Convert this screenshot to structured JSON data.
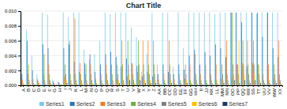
{
  "chart_data": {
    "type": "bar",
    "title": "Chart Title",
    "categories": [
      "A",
      "B",
      "C",
      "D",
      "E",
      "F",
      "G",
      "H",
      "I",
      "J",
      "K",
      "L",
      "M",
      "N",
      "O",
      "P",
      "Q",
      "R",
      "S",
      "T",
      "U",
      "V",
      "W",
      "X",
      "Y",
      "Z",
      "AA",
      "BB",
      "CC",
      "DD",
      "EE",
      "FF",
      "GG",
      "HH",
      "II",
      "JJ",
      "KK",
      "LL",
      "MM",
      "NN",
      "OO",
      "PP",
      "QQ",
      "RR",
      "SS",
      "TT",
      "UU",
      "VV",
      "WW",
      "XX"
    ],
    "series": [
      {
        "name": "Series1",
        "color": "#7ec8e3",
        "values": [
          0.0098,
          0.0075,
          0.004,
          0.0015,
          0.0098,
          0.0095,
          0.0008,
          0.0005,
          0.0098,
          0.0092,
          0.0098,
          0.0098,
          0.0048,
          0.0035,
          0.0042,
          0.006,
          0.0098,
          0.0096,
          0.0098,
          0.0098,
          0.0098,
          0.0078,
          0.0065,
          0.0018,
          0.0042,
          0.0098,
          0.0028,
          0.0098,
          0.0098,
          0.0025,
          0.0098,
          0.005,
          0.0098,
          0.0098,
          0.0098,
          0.0098,
          0.0098,
          0.0096,
          0.0098,
          0.0098,
          0.0098,
          0.0098,
          0.0098,
          0.0098,
          0.0098,
          0.0096,
          0.0098,
          0.0098,
          0.0098,
          0.0098
        ]
      },
      {
        "name": "Series2",
        "color": "#2e75b6",
        "values": [
          0.0015,
          0.006,
          0.002,
          0.0008,
          0.0055,
          0.005,
          0.0005,
          0.0004,
          0.005,
          0.0055,
          0.0032,
          0.0018,
          0.003,
          0.0042,
          0.0018,
          0.0028,
          0.0042,
          0.0045,
          0.0038,
          0.0025,
          0.0036,
          0.003,
          0.0026,
          0.0012,
          0.0018,
          0.0012,
          0.0015,
          0.0028,
          0.0018,
          0.0015,
          0.0028,
          0.0021,
          0.004,
          0.0048,
          0.0028,
          0.0045,
          0.004,
          0.0055,
          0.005,
          0.0038,
          0.0098,
          0.0098,
          0.0085,
          0.0025,
          0.0098,
          0.0098,
          0.0065,
          0.0098,
          0.005,
          0.0038
        ]
      },
      {
        "name": "Series3",
        "color": "#ed7d31",
        "values": [
          0.0008,
          0.0015,
          0.0008,
          0.0005,
          0.0015,
          0.0028,
          0.0003,
          0.0003,
          0.0012,
          0.006,
          0.009,
          0.003,
          0.0015,
          0.0028,
          0.0008,
          0.0015,
          0.0028,
          0.0028,
          0.0009,
          0.006,
          0.0012,
          0.0028,
          0.0018,
          0.006,
          0.006,
          0.006,
          0.0008,
          0.0015,
          0.006,
          0.0008,
          0.0015,
          0.0009,
          0.0028,
          0.0042,
          0.0015,
          0.0028,
          0.0015,
          0.0028,
          0.0009,
          0.006,
          0.0012,
          0.0028,
          0.003,
          0.006,
          0.003,
          0.0028,
          0.0015,
          0.0028,
          0.0009,
          0.006
        ]
      },
      {
        "name": "Series4",
        "color": "#70ad47",
        "values": [
          0.0003,
          0.0028,
          0.0003,
          0.0003,
          0.0042,
          0.0015,
          0.0001,
          0.0001,
          0.0028,
          0.0015,
          0.0015,
          0.0015,
          0.0028,
          0.0015,
          0.0003,
          0.0007,
          0.0015,
          0.0015,
          0.0028,
          0.0028,
          0.006,
          0.0015,
          0.006,
          0.0028,
          0.0028,
          0.0028,
          0.0003,
          0.0007,
          0.0028,
          0.0003,
          0.0007,
          0.0028,
          0.0007,
          0.0015,
          0.0007,
          0.0007,
          0.0007,
          0.0007,
          0.0028,
          0.0015,
          0.0098,
          0.0028,
          0.006,
          0.0028,
          0.006,
          0.0028,
          0.0007,
          0.0007,
          0.0028,
          0.0015
        ]
      },
      {
        "name": "Series5",
        "color": "#808080",
        "values": [
          0.0001,
          0.0007,
          0.0001,
          0.0001,
          0.0007,
          0.0007,
          0.0001,
          0.0001,
          0.0015,
          0.0007,
          0.0007,
          0.0007,
          0.0007,
          0.0007,
          0.0001,
          0.0003,
          0.0007,
          0.0007,
          0.0015,
          0.0007,
          0.0028,
          0.0007,
          0.0028,
          0.0015,
          0.0015,
          0.0015,
          0.0001,
          0.0003,
          0.0015,
          0.0001,
          0.0003,
          0.0015,
          0.0003,
          0.0007,
          0.0003,
          0.0003,
          0.0003,
          0.0003,
          0.0015,
          0.0007,
          0.0028,
          0.0015,
          0.0028,
          0.0015,
          0.0028,
          0.0015,
          0.0003,
          0.0003,
          0.0015,
          0.0007
        ]
      },
      {
        "name": "Series6",
        "color": "#ffc000",
        "values": [
          0.0001,
          0.0003,
          0.0001,
          0.0001,
          0.0003,
          0.0003,
          0.0001,
          0.0001,
          0.0007,
          0.0003,
          0.0003,
          0.0003,
          0.0003,
          0.0003,
          0.0001,
          0.0001,
          0.0003,
          0.0003,
          0.0007,
          0.0003,
          0.0015,
          0.0003,
          0.0015,
          0.0007,
          0.0007,
          0.0007,
          0.0001,
          0.0001,
          0.0007,
          0.0001,
          0.0001,
          0.0007,
          0.0001,
          0.0003,
          0.0001,
          0.0001,
          0.0001,
          0.0001,
          0.0007,
          0.0003,
          0.0015,
          0.006,
          0.0015,
          0.0007,
          0.0015,
          0.0007,
          0.0001,
          0.0001,
          0.0007,
          0.0003
        ]
      },
      {
        "name": "Series7",
        "color": "#1f3864",
        "values": [
          0.0001,
          0.0001,
          0.0001,
          0.0001,
          0.0001,
          0.0001,
          0.0001,
          0.0001,
          0.0003,
          0.0001,
          0.0001,
          0.0001,
          0.0001,
          0.0001,
          0.0001,
          0.0001,
          0.0001,
          0.0001,
          0.0003,
          0.0001,
          0.0007,
          0.0001,
          0.0007,
          0.0003,
          0.0003,
          0.0003,
          0.0001,
          0.0001,
          0.0003,
          0.0001,
          0.0001,
          0.0003,
          0.0001,
          0.0001,
          0.0001,
          0.0001,
          0.0001,
          0.0001,
          0.0003,
          0.0001,
          0.0007,
          0.0003,
          0.0007,
          0.0003,
          0.0007,
          0.0003,
          0.0001,
          0.0001,
          0.0003,
          0.0001
        ]
      }
    ],
    "ylim": [
      0,
      0.01
    ],
    "yticks": [
      {
        "value": 0,
        "label": "0.000"
      },
      {
        "value": 0.002,
        "label": "0.002"
      },
      {
        "value": 0.004,
        "label": "0.004"
      },
      {
        "value": 0.006,
        "label": "0.006"
      },
      {
        "value": 0.008,
        "label": "0.008"
      },
      {
        "value": 0.01,
        "label": "0.010"
      }
    ],
    "grid": true,
    "legend": "bottom"
  }
}
